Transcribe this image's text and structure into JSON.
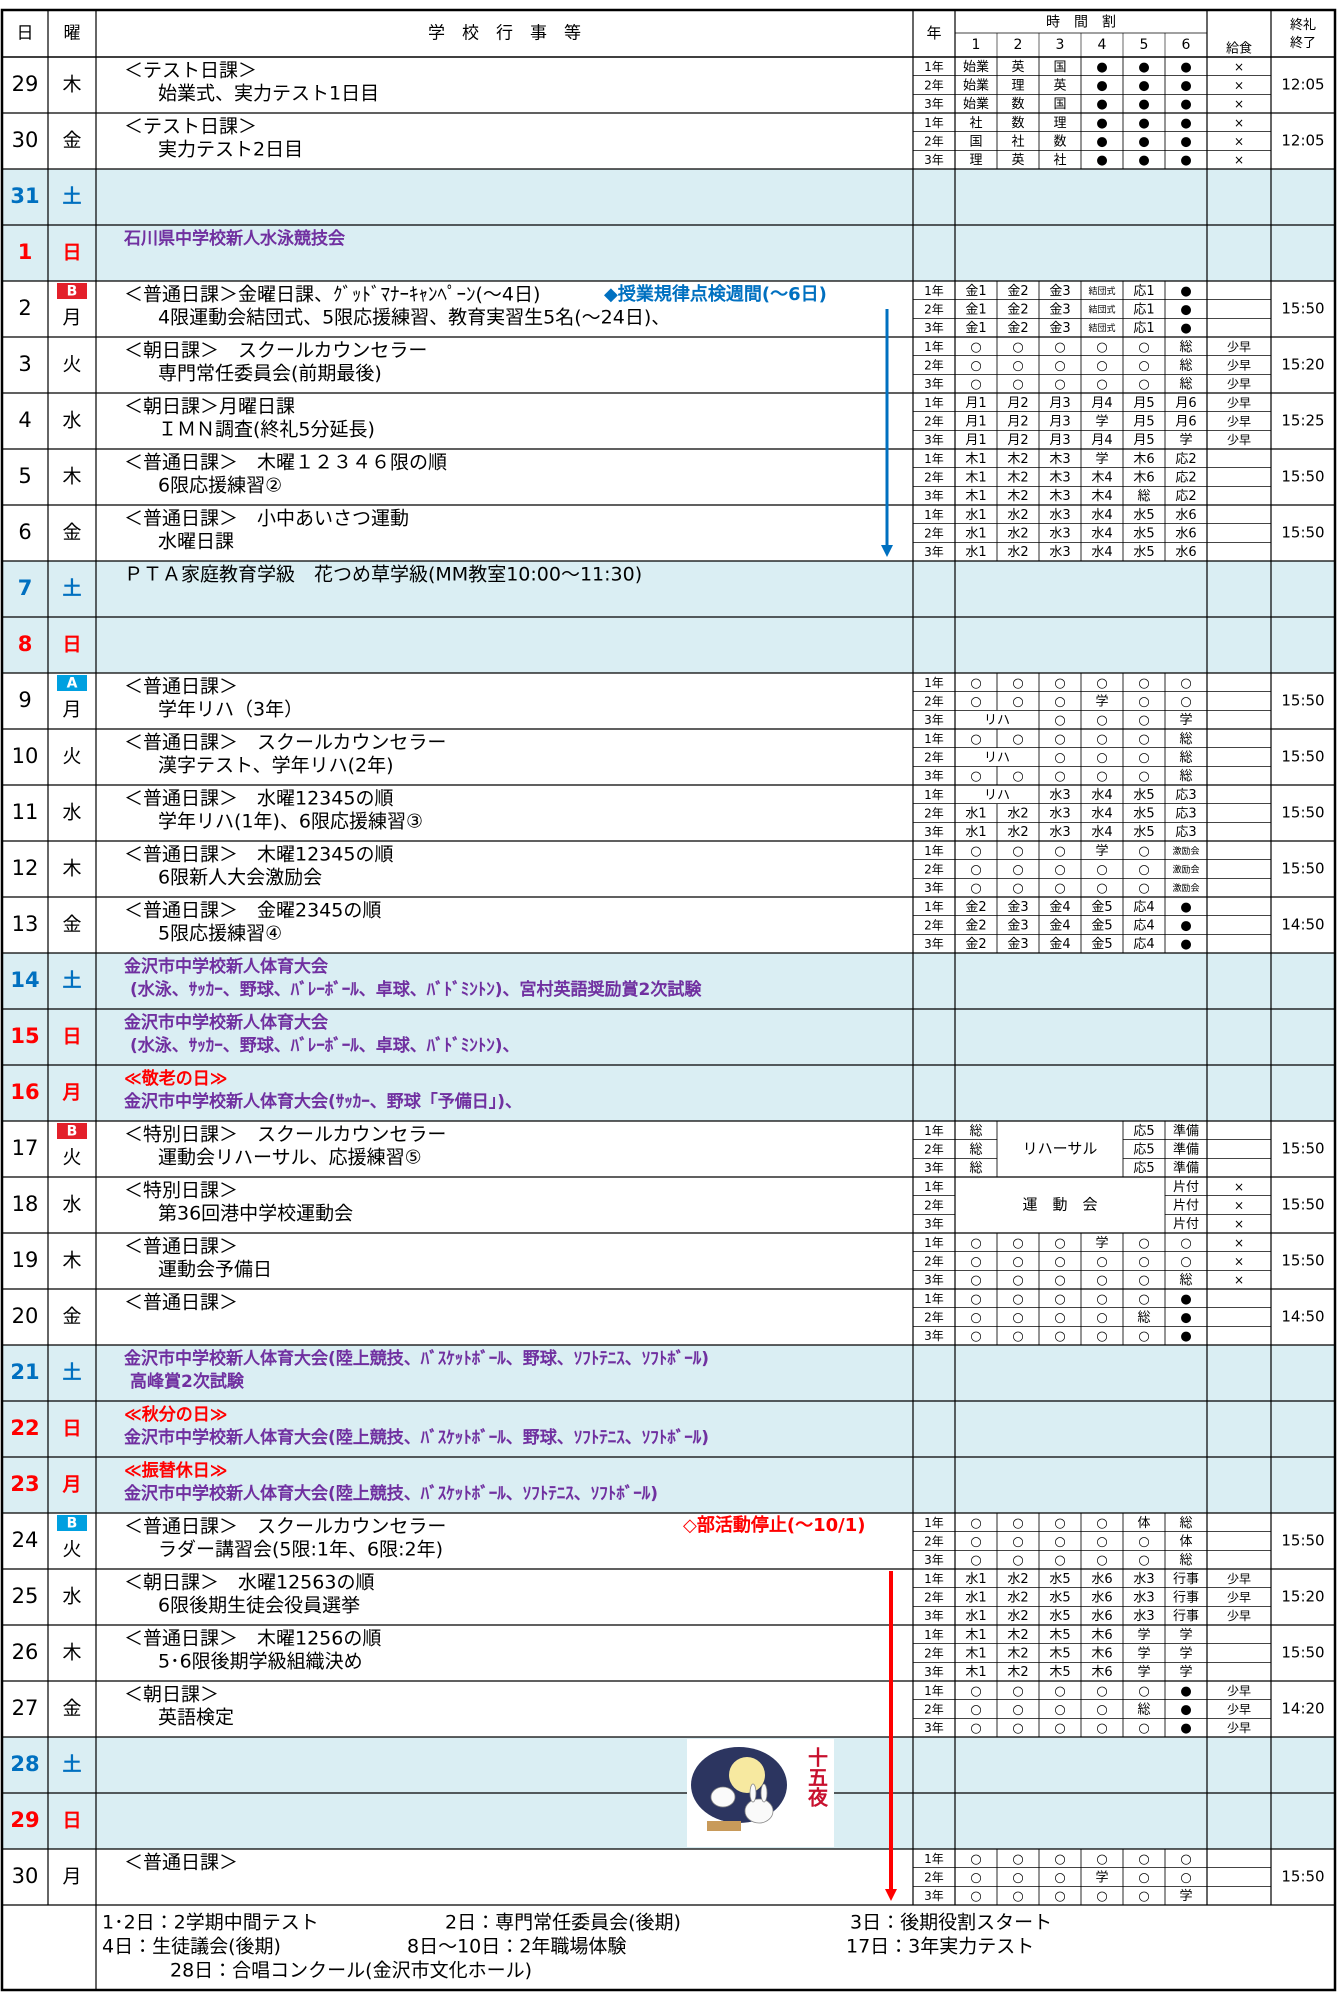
{
  "header": {
    "day": "日",
    "weekday": "曜",
    "events": "学　校　行　事　等",
    "grade": "年",
    "timetable": "時　間　割",
    "periods": [
      1,
      2,
      3,
      4,
      5,
      6
    ],
    "lunch": "給食",
    "end": [
      "終礼",
      "終了"
    ]
  },
  "rows": [
    {
      "date": "29",
      "weekday": "木",
      "events": [
        "＜テスト日課＞",
        "始業式、実力テスト1日目"
      ],
      "grades": [
        {
          "grade": "1年",
          "periods": [
            "始業",
            "英",
            "国",
            "●",
            "●",
            "●"
          ],
          "lunch": "×"
        },
        {
          "grade": "2年",
          "periods": [
            "始業",
            "理",
            "英",
            "●",
            "●",
            "●"
          ],
          "lunch": "×"
        },
        {
          "grade": "3年",
          "periods": [
            "始業",
            "数",
            "国",
            "●",
            "●",
            "●"
          ],
          "lunch": "×"
        }
      ],
      "end": "12:05"
    },
    {
      "date": "30",
      "weekday": "金",
      "events": [
        "＜テスト日課＞",
        "実力テスト2日目"
      ],
      "grades": [
        {
          "grade": "1年",
          "periods": [
            "社",
            "数",
            "理",
            "●",
            "●",
            "●"
          ],
          "lunch": "×"
        },
        {
          "grade": "2年",
          "periods": [
            "国",
            "社",
            "数",
            "●",
            "●",
            "●"
          ],
          "lunch": "×"
        },
        {
          "grade": "3年",
          "periods": [
            "理",
            "英",
            "社",
            "●",
            "●",
            "●"
          ],
          "lunch": "×"
        }
      ],
      "end": "12:05"
    },
    {
      "date": "31",
      "weekday": "土",
      "date_color": "#0070c0",
      "shaded": true
    },
    {
      "date": "1",
      "weekday": "日",
      "date_color": "#ff0000",
      "shaded": true,
      "events": [
        {
          "text": "石川県中学校新人水泳競技会",
          "color": "#7030a0"
        }
      ]
    },
    {
      "date": "2",
      "weekday": "月",
      "badge": {
        "text": "B",
        "color": "#e3202a"
      },
      "events": [
        "＜普通日課＞金曜日課、ｸﾞｯﾄﾞﾏﾅｰｷｬﾝﾍﾟｰﾝ(～4日)",
        "4限運動会結団式、5限応援練習、教育実習生5名(～24日)、"
      ],
      "grades": [
        {
          "grade": "1年",
          "periods": [
            "金1",
            "金2",
            "金3",
            "結団式",
            "応1",
            "●"
          ]
        },
        {
          "grade": "2年",
          "periods": [
            "金1",
            "金2",
            "金3",
            "結団式",
            "応1",
            "●"
          ]
        },
        {
          "grade": "3年",
          "periods": [
            "金1",
            "金2",
            "金3",
            "結団式",
            "応1",
            "●"
          ]
        }
      ],
      "end": "15:50"
    },
    {
      "date": "3",
      "weekday": "火",
      "events": [
        "＜朝日課＞　スクールカウンセラー",
        "専門常任委員会(前期最後)"
      ],
      "grades": [
        {
          "grade": "1年",
          "periods": [
            "○",
            "○",
            "○",
            "○",
            "○",
            "総"
          ],
          "lunch": "少早"
        },
        {
          "grade": "2年",
          "periods": [
            "○",
            "○",
            "○",
            "○",
            "○",
            "総"
          ],
          "lunch": "少早"
        },
        {
          "grade": "3年",
          "periods": [
            "○",
            "○",
            "○",
            "○",
            "○",
            "総"
          ],
          "lunch": "少早"
        }
      ],
      "end": "15:20"
    },
    {
      "date": "4",
      "weekday": "水",
      "events": [
        "＜朝日課＞月曜日課",
        "ＩＭＮ調査(終礼5分延長)"
      ],
      "grades": [
        {
          "grade": "1年",
          "periods": [
            "月1",
            "月2",
            "月3",
            "月4",
            "月5",
            "月6"
          ],
          "lunch": "少早"
        },
        {
          "grade": "2年",
          "periods": [
            "月1",
            "月2",
            "月3",
            "学",
            "月5",
            "月6"
          ],
          "lunch": "少早"
        },
        {
          "grade": "3年",
          "periods": [
            "月1",
            "月2",
            "月3",
            "月4",
            "月5",
            "学"
          ],
          "lunch": "少早"
        }
      ],
      "end": "15:25"
    },
    {
      "date": "5",
      "weekday": "木",
      "events": [
        "＜普通日課＞　木曜１２３４６限の順",
        "6限応援練習②"
      ],
      "grades": [
        {
          "grade": "1年",
          "periods": [
            "木1",
            "木2",
            "木3",
            "学",
            "木6",
            "応2"
          ]
        },
        {
          "grade": "2年",
          "periods": [
            "木1",
            "木2",
            "木3",
            "木4",
            "木6",
            "応2"
          ]
        },
        {
          "grade": "3年",
          "periods": [
            "木1",
            "木2",
            "木3",
            "木4",
            "総",
            "応2"
          ]
        }
      ],
      "end": "15:50"
    },
    {
      "date": "6",
      "weekday": "金",
      "events": [
        "＜普通日課＞　小中あいさつ運動",
        "水曜日課"
      ],
      "grades": [
        {
          "grade": "1年",
          "periods": [
            "水1",
            "水2",
            "水3",
            "水4",
            "水5",
            "水6"
          ]
        },
        {
          "grade": "2年",
          "periods": [
            "水1",
            "水2",
            "水3",
            "水4",
            "水5",
            "水6"
          ]
        },
        {
          "grade": "3年",
          "periods": [
            "水1",
            "水2",
            "水3",
            "水4",
            "水5",
            "水6"
          ]
        }
      ],
      "end": "15:50"
    },
    {
      "date": "7",
      "weekday": "土",
      "date_color": "#0070c0",
      "shaded": true,
      "events": [
        "ＰＴＡ家庭教育学級　花つめ草学級(MM教室10:00～11:30)"
      ]
    },
    {
      "date": "8",
      "weekday": "日",
      "date_color": "#ff0000",
      "shaded": true
    },
    {
      "date": "9",
      "weekday": "月",
      "badge": {
        "text": "A",
        "color": "#00a0e0"
      },
      "events": [
        "＜普通日課＞",
        "学年リハ（3年）"
      ],
      "grades": [
        {
          "grade": "1年",
          "periods": [
            "○",
            "○",
            "○",
            "○",
            "○",
            "○"
          ]
        },
        {
          "grade": "2年",
          "periods": [
            "○",
            "○",
            "○",
            "学",
            "○",
            "○"
          ]
        },
        {
          "grade": "3年",
          "periods": [
            "リハ",
            null,
            "○",
            "○",
            "○",
            "学"
          ]
        }
      ],
      "end": "15:50"
    },
    {
      "date": "10",
      "weekday": "火",
      "events": [
        "＜普通日課＞　スクールカウンセラー",
        "漢字テスト、学年リハ(2年)"
      ],
      "grades": [
        {
          "grade": "1年",
          "periods": [
            "○",
            "○",
            "○",
            "○",
            "○",
            "総"
          ]
        },
        {
          "grade": "2年",
          "periods": [
            "リハ",
            null,
            "○",
            "○",
            "○",
            "総"
          ]
        },
        {
          "grade": "3年",
          "periods": [
            "○",
            "○",
            "○",
            "○",
            "○",
            "総"
          ]
        }
      ],
      "end": "15:50"
    },
    {
      "date": "11",
      "weekday": "水",
      "events": [
        "＜普通日課＞　水曜12345の順",
        "学年リハ(1年)、6限応援練習③"
      ],
      "grades": [
        {
          "grade": "1年",
          "periods": [
            "リハ",
            null,
            "水3",
            "水4",
            "水5",
            "応3"
          ]
        },
        {
          "grade": "2年",
          "periods": [
            "水1",
            "水2",
            "水3",
            "水4",
            "水5",
            "応3"
          ]
        },
        {
          "grade": "3年",
          "periods": [
            "水1",
            "水2",
            "水3",
            "水4",
            "水5",
            "応3"
          ]
        }
      ],
      "end": "15:50"
    },
    {
      "date": "12",
      "weekday": "木",
      "events": [
        "＜普通日課＞　木曜12345の順",
        "6限新人大会激励会"
      ],
      "grades": [
        {
          "grade": "1年",
          "periods": [
            "○",
            "○",
            "○",
            "学",
            "○",
            "激励会"
          ]
        },
        {
          "grade": "2年",
          "periods": [
            "○",
            "○",
            "○",
            "○",
            "○",
            "激励会"
          ]
        },
        {
          "grade": "3年",
          "periods": [
            "○",
            "○",
            "○",
            "○",
            "○",
            "激励会"
          ]
        }
      ],
      "end": "15:50"
    },
    {
      "date": "13",
      "weekday": "金",
      "events": [
        "＜普通日課＞　金曜2345の順",
        "5限応援練習④"
      ],
      "grades": [
        {
          "grade": "1年",
          "periods": [
            "金2",
            "金3",
            "金4",
            "金5",
            "応4",
            "●"
          ]
        },
        {
          "grade": "2年",
          "periods": [
            "金2",
            "金3",
            "金4",
            "金5",
            "応4",
            "●"
          ]
        },
        {
          "grade": "3年",
          "periods": [
            "金2",
            "金3",
            "金4",
            "金5",
            "応4",
            "●"
          ]
        }
      ],
      "end": "14:50"
    },
    {
      "date": "14",
      "weekday": "土",
      "date_color": "#0070c0",
      "shaded": true,
      "events": [
        {
          "text": "金沢市中学校新人体育大会",
          "color": "#7030a0"
        },
        {
          "text": "(水泳、ｻｯｶｰ、野球、ﾊﾞﾚｰﾎﾞｰﾙ、卓球、ﾊﾞﾄﾞﾐﾝﾄﾝ)、宮村英語奨励賞2次試験",
          "color": "#7030a0"
        }
      ]
    },
    {
      "date": "15",
      "weekday": "日",
      "date_color": "#ff0000",
      "shaded": true,
      "events": [
        {
          "text": "金沢市中学校新人体育大会",
          "color": "#7030a0"
        },
        {
          "text": "(水泳、ｻｯｶｰ、野球、ﾊﾞﾚｰﾎﾞｰﾙ、卓球、ﾊﾞﾄﾞﾐﾝﾄﾝ)、",
          "color": "#7030a0"
        }
      ]
    },
    {
      "date": "16",
      "weekday": "月",
      "date_color": "#ff0000",
      "shaded": true,
      "events": [
        {
          "text": "≪敬老の日≫",
          "color": "#ff0000"
        },
        {
          "text": "金沢市中学校新人体育大会(ｻｯｶｰ、野球「予備日」)、",
          "color": "#7030a0"
        }
      ]
    },
    {
      "date": "17",
      "weekday": "火",
      "badge": {
        "text": "B",
        "color": "#e3202a"
      },
      "events": [
        "＜特別日課＞　スクールカウンセラー",
        "運動会リハーサル、応援練習⑤"
      ],
      "block": "リハーサル",
      "grades": [
        {
          "grade": "1年",
          "periods": [
            "総",
            null,
            null,
            null,
            "応5",
            "準備"
          ]
        },
        {
          "grade": "2年",
          "periods": [
            "総",
            null,
            null,
            null,
            "応5",
            "準備"
          ]
        },
        {
          "grade": "3年",
          "periods": [
            "総",
            null,
            null,
            null,
            "応5",
            "準備"
          ]
        }
      ],
      "end": "15:50"
    },
    {
      "date": "18",
      "weekday": "水",
      "events": [
        "＜特別日課＞",
        "第36回港中学校運動会"
      ],
      "block": "運　動　会",
      "grades": [
        {
          "grade": "1年",
          "periods": [
            null,
            null,
            null,
            null,
            null,
            "片付"
          ],
          "lunch": "×"
        },
        {
          "grade": "2年",
          "periods": [
            null,
            null,
            null,
            null,
            null,
            "片付"
          ],
          "lunch": "×"
        },
        {
          "grade": "3年",
          "periods": [
            null,
            null,
            null,
            null,
            null,
            "片付"
          ],
          "lunch": "×"
        }
      ],
      "end": "15:50"
    },
    {
      "date": "19",
      "weekday": "木",
      "events": [
        "＜普通日課＞",
        "運動会予備日"
      ],
      "grades": [
        {
          "grade": "1年",
          "periods": [
            "○",
            "○",
            "○",
            "学",
            "○",
            "○"
          ],
          "lunch": "×"
        },
        {
          "grade": "2年",
          "periods": [
            "○",
            "○",
            "○",
            "○",
            "○",
            "○"
          ],
          "lunch": "×"
        },
        {
          "grade": "3年",
          "periods": [
            "○",
            "○",
            "○",
            "○",
            "○",
            "総"
          ],
          "lunch": "×"
        }
      ],
      "end": "15:50"
    },
    {
      "date": "20",
      "weekday": "金",
      "events": [
        "＜普通日課＞"
      ],
      "grades": [
        {
          "grade": "1年",
          "periods": [
            "○",
            "○",
            "○",
            "○",
            "○",
            "●"
          ]
        },
        {
          "grade": "2年",
          "periods": [
            "○",
            "○",
            "○",
            "○",
            "総",
            "●"
          ]
        },
        {
          "grade": "3年",
          "periods": [
            "○",
            "○",
            "○",
            "○",
            "○",
            "●"
          ]
        }
      ],
      "end": "14:50"
    },
    {
      "date": "21",
      "weekday": "土",
      "date_color": "#0070c0",
      "shaded": true,
      "events": [
        {
          "text": "金沢市中学校新人体育大会(陸上競技、ﾊﾞｽｹｯﾄﾎﾞｰﾙ、野球、ｿﾌﾄﾃﾆｽ、ｿﾌﾄﾎﾞｰﾙ)",
          "color": "#7030a0"
        },
        {
          "text": "高峰賞2次試験",
          "color": "#7030a0"
        }
      ]
    },
    {
      "date": "22",
      "weekday": "日",
      "date_color": "#ff0000",
      "shaded": true,
      "events": [
        {
          "text": "≪秋分の日≫",
          "color": "#ff0000"
        },
        {
          "text": "金沢市中学校新人体育大会(陸上競技、ﾊﾞｽｹｯﾄﾎﾞｰﾙ、野球、ｿﾌﾄﾃﾆｽ、ｿﾌﾄﾎﾞｰﾙ)",
          "color": "#7030a0"
        }
      ]
    },
    {
      "date": "23",
      "weekday": "月",
      "date_color": "#ff0000",
      "shaded": true,
      "events": [
        {
          "text": "≪振替休日≫",
          "color": "#ff0000"
        },
        {
          "text": "金沢市中学校新人体育大会(陸上競技、ﾊﾞｽｹｯﾄﾎﾞｰﾙ、ｿﾌﾄﾃﾆｽ、ｿﾌﾄﾎﾞｰﾙ)",
          "color": "#7030a0"
        }
      ]
    },
    {
      "date": "24",
      "weekday": "火",
      "badge": {
        "text": "B",
        "color": "#00a0e0"
      },
      "events": [
        "＜普通日課＞　スクールカウンセラー",
        "ラダー講習会(5限:1年、6限:2年)"
      ],
      "grades": [
        {
          "grade": "1年",
          "periods": [
            "○",
            "○",
            "○",
            "○",
            "体",
            "総"
          ]
        },
        {
          "grade": "2年",
          "periods": [
            "○",
            "○",
            "○",
            "○",
            "○",
            "体"
          ]
        },
        {
          "grade": "3年",
          "periods": [
            "○",
            "○",
            "○",
            "○",
            "○",
            "総"
          ]
        }
      ],
      "end": "15:50"
    },
    {
      "date": "25",
      "weekday": "水",
      "events": [
        "＜朝日課＞　水曜12563の順",
        "6限後期生徒会役員選挙"
      ],
      "grades": [
        {
          "grade": "1年",
          "periods": [
            "水1",
            "水2",
            "水5",
            "水6",
            "水3",
            "行事"
          ],
          "lunch": "少早"
        },
        {
          "grade": "2年",
          "periods": [
            "水1",
            "水2",
            "水5",
            "水6",
            "水3",
            "行事"
          ],
          "lunch": "少早"
        },
        {
          "grade": "3年",
          "periods": [
            "水1",
            "水2",
            "水5",
            "水6",
            "水3",
            "行事"
          ],
          "lunch": "少早"
        }
      ],
      "end": "15:20"
    },
    {
      "date": "26",
      "weekday": "木",
      "events": [
        "＜普通日課＞　木曜1256の順",
        "5･6限後期学級組織決め"
      ],
      "grades": [
        {
          "grade": "1年",
          "periods": [
            "木1",
            "木2",
            "木5",
            "木6",
            "学",
            "学"
          ]
        },
        {
          "grade": "2年",
          "periods": [
            "木1",
            "木2",
            "木5",
            "木6",
            "学",
            "学"
          ]
        },
        {
          "grade": "3年",
          "periods": [
            "木1",
            "木2",
            "木5",
            "木6",
            "学",
            "学"
          ]
        }
      ],
      "end": "15:50"
    },
    {
      "date": "27",
      "weekday": "金",
      "events": [
        "＜朝日課＞",
        "英語検定"
      ],
      "grades": [
        {
          "grade": "1年",
          "periods": [
            "○",
            "○",
            "○",
            "○",
            "○",
            "●"
          ],
          "lunch": "少早"
        },
        {
          "grade": "2年",
          "periods": [
            "○",
            "○",
            "○",
            "○",
            "総",
            "●"
          ],
          "lunch": "少早"
        },
        {
          "grade": "3年",
          "periods": [
            "○",
            "○",
            "○",
            "○",
            "○",
            "●"
          ],
          "lunch": "少早"
        }
      ],
      "end": "14:20"
    },
    {
      "date": "28",
      "weekday": "土",
      "date_color": "#0070c0",
      "shaded": true
    },
    {
      "date": "29",
      "weekday": "日",
      "date_color": "#ff0000",
      "shaded": true
    },
    {
      "date": "30",
      "weekday": "月",
      "events": [
        "＜普通日課＞"
      ],
      "grades": [
        {
          "grade": "1年",
          "periods": [
            "○",
            "○",
            "○",
            "○",
            "○",
            "○"
          ]
        },
        {
          "grade": "2年",
          "periods": [
            "○",
            "○",
            "○",
            "学",
            "○",
            "○"
          ]
        },
        {
          "grade": "3年",
          "periods": [
            "○",
            "○",
            "○",
            "○",
            "○",
            "学"
          ]
        }
      ],
      "end": "15:50"
    }
  ],
  "annotations": [
    {
      "text": "◆授業規律点検週間(～6日)",
      "color": "#0070c0"
    },
    {
      "text": "◇部活動停止(～10/1)",
      "color": "#ff0000"
    }
  ],
  "moon_label": "十五夜",
  "notes": [
    [
      "1･2日：2学期中間テスト",
      "2日：専門常任委員会(後期)",
      "3日：後期役割スタート"
    ],
    [
      "4日：生徒議会(後期)",
      "8日～10日：2年職場体験",
      "17日：3年実力テスト"
    ],
    [
      "28日：合唱コンクール(金沢市文化ホール)"
    ]
  ]
}
